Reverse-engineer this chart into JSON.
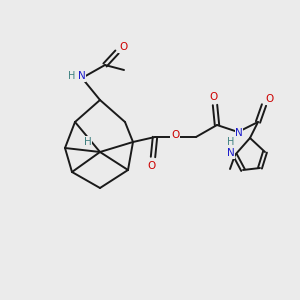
{
  "bg_color": "#ebebeb",
  "bond_color": "#1a1a1a",
  "atom_colors": {
    "O": "#cc0000",
    "N": "#1a1acc",
    "H": "#3d8080",
    "C": "#1a1a1a"
  },
  "figsize": [
    3.0,
    3.0
  ],
  "dpi": 100
}
